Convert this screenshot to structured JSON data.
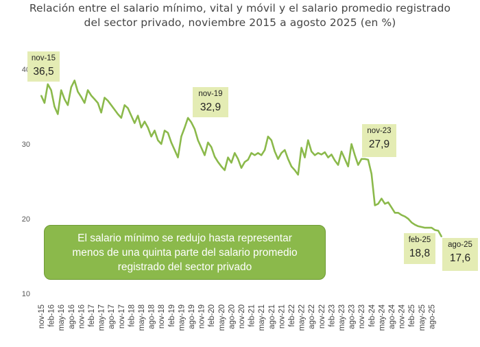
{
  "title": {
    "line1": "Relación entre el salario mínimo, vital y móvil y el salario promedio registrado",
    "line2": "del sector privado, noviembre 2015 a agosto 2025 (en %)"
  },
  "note": {
    "line1": "El salario mínimo se redujo hasta representar",
    "line2": "menos de una quinta parte del salario promedio",
    "line3": "registrado del sector privado"
  },
  "colors": {
    "line": "#8bb94b",
    "callout_bg": "#e4ecb4",
    "note_bg": "#8bb94b"
  },
  "chart_data": {
    "type": "line",
    "title": "Relación entre el salario mínimo, vital y móvil y el salario promedio registrado del sector privado, noviembre 2015 a agosto 2025 (en %)",
    "xlabel": "",
    "ylabel": "",
    "ylim": [
      10,
      40
    ],
    "yticks": [
      10,
      20,
      30,
      40
    ],
    "grid": false,
    "x_ticks": [
      "nov-15",
      "feb-16",
      "may-16",
      "ago-16",
      "nov-16",
      "feb-17",
      "may-17",
      "ago-17",
      "nov-17",
      "feb-18",
      "may-18",
      "ago-18",
      "nov-18",
      "feb-19",
      "may-19",
      "ago-19",
      "nov-19",
      "feb-20",
      "may-20",
      "ago-20",
      "nov-20",
      "feb-21",
      "may-21",
      "ago-21",
      "nov-21",
      "feb-22",
      "may-22",
      "ago-22",
      "nov-22",
      "feb-23",
      "may-23",
      "ago-23",
      "nov-23",
      "feb-24",
      "may-24",
      "ago-24",
      "nov-24",
      "feb-25",
      "may-25",
      "ago-25"
    ],
    "series": [
      {
        "values": [
          36.5,
          35.5,
          38.0,
          37.2,
          35.0,
          34.0,
          37.2,
          36.0,
          35.2,
          37.6,
          38.5,
          37.0,
          36.3,
          35.5,
          37.2,
          36.5,
          36.0,
          35.5,
          34.2,
          36.2,
          35.8,
          35.2,
          34.6,
          34.0,
          33.5,
          35.2,
          34.8,
          33.8,
          32.8,
          33.8,
          32.2,
          33.0,
          32.2,
          31.0,
          31.8,
          30.5,
          30.0,
          31.8,
          31.5,
          30.2,
          29.2,
          28.2,
          31.0,
          32.2,
          33.5,
          32.9,
          32.0,
          30.5,
          29.5,
          28.5,
          30.2,
          29.6,
          28.3,
          27.6,
          27.0,
          26.5,
          28.2,
          27.5,
          28.8,
          28.0,
          26.8,
          27.6,
          27.9,
          28.8,
          28.5,
          28.8,
          28.5,
          29.2,
          31.0,
          30.5,
          29.0,
          28.0,
          28.8,
          29.2,
          28.0,
          27.0,
          26.5,
          25.9,
          29.5,
          28.2,
          30.5,
          29.0,
          28.5,
          28.8,
          28.6,
          28.9,
          28.2,
          28.6,
          27.8,
          27.2,
          29.0,
          28.0,
          27.0,
          30.0,
          28.5,
          27.2,
          28.0,
          28.0,
          27.9,
          26.0,
          21.8,
          22.0,
          22.7,
          22.0,
          22.2,
          21.5,
          20.8,
          20.8,
          20.5,
          20.3,
          20.0,
          19.5,
          19.2,
          19.0,
          18.9,
          18.8,
          18.8,
          18.8,
          18.5,
          18.4,
          17.6
        ]
      }
    ],
    "annotations": [
      {
        "period": "nov-15",
        "value": "36,5"
      },
      {
        "period": "nov-19",
        "value": "32,9"
      },
      {
        "period": "nov-23",
        "value": "27,9"
      },
      {
        "period": "feb-25",
        "value": "18,8"
      },
      {
        "period": "ago-25",
        "value": "17,6"
      }
    ]
  }
}
